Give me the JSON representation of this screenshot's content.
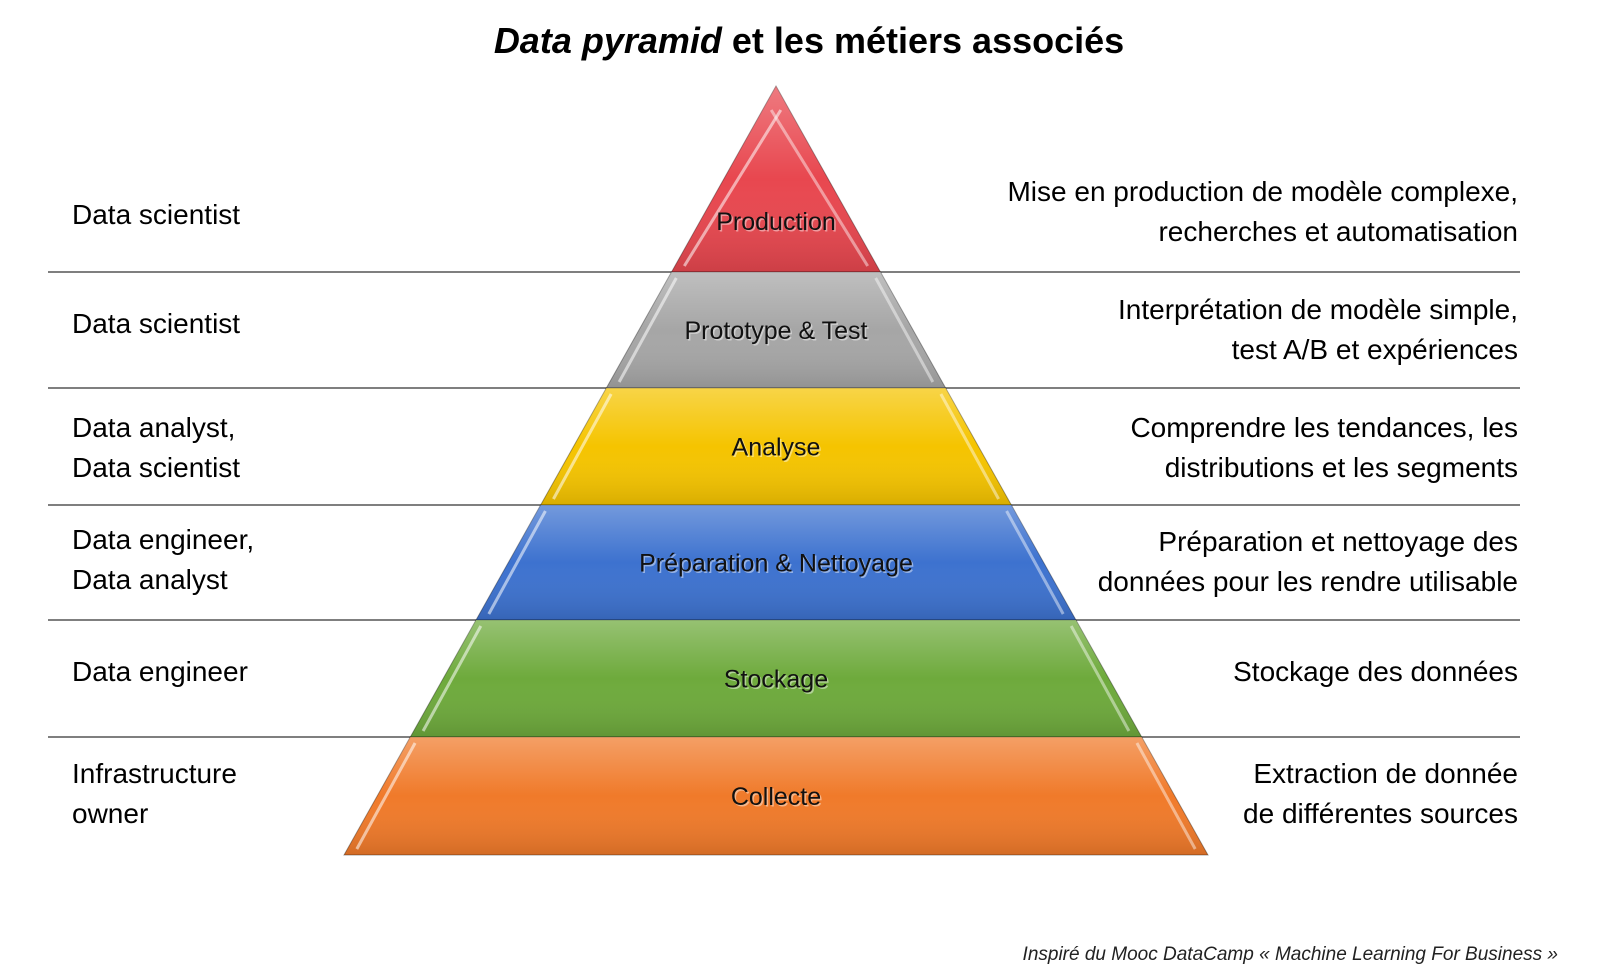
{
  "title": {
    "italic": "Data pyramid",
    "rest": "et les métiers associés"
  },
  "levels": [
    {
      "name": "Production",
      "color": "#e8474f",
      "roles": "Data scientist",
      "description": "Mise en production de modèle complexe,\nrecherches et automatisation"
    },
    {
      "name": "Prototype & Test",
      "color": "#a6a6a6",
      "roles": "Data scientist",
      "description": "Interprétation de modèle simple,\ntest A/B et expériences"
    },
    {
      "name": "Analyse",
      "color": "#f5c400",
      "roles": "Data analyst,\nData scientist",
      "description": "Comprendre les tendances, les\ndistributions et les segments"
    },
    {
      "name": "Préparation & Nettoyage",
      "color": "#3d72cf",
      "roles": "Data engineer,\nData analyst",
      "description": "Préparation et nettoyage des\ndonnées pour les rendre utilisable"
    },
    {
      "name": "Stockage",
      "color": "#6eaa3c",
      "roles": "Data engineer",
      "description": "Stockage des données"
    },
    {
      "name": "Collecte",
      "color": "#f07a2a",
      "roles": "Infrastructure\nowner",
      "description": "Extraction de donnée\nde différentes sources"
    }
  ],
  "credit": "Inspiré du Mooc DataCamp « Machine Learning For Business »"
}
